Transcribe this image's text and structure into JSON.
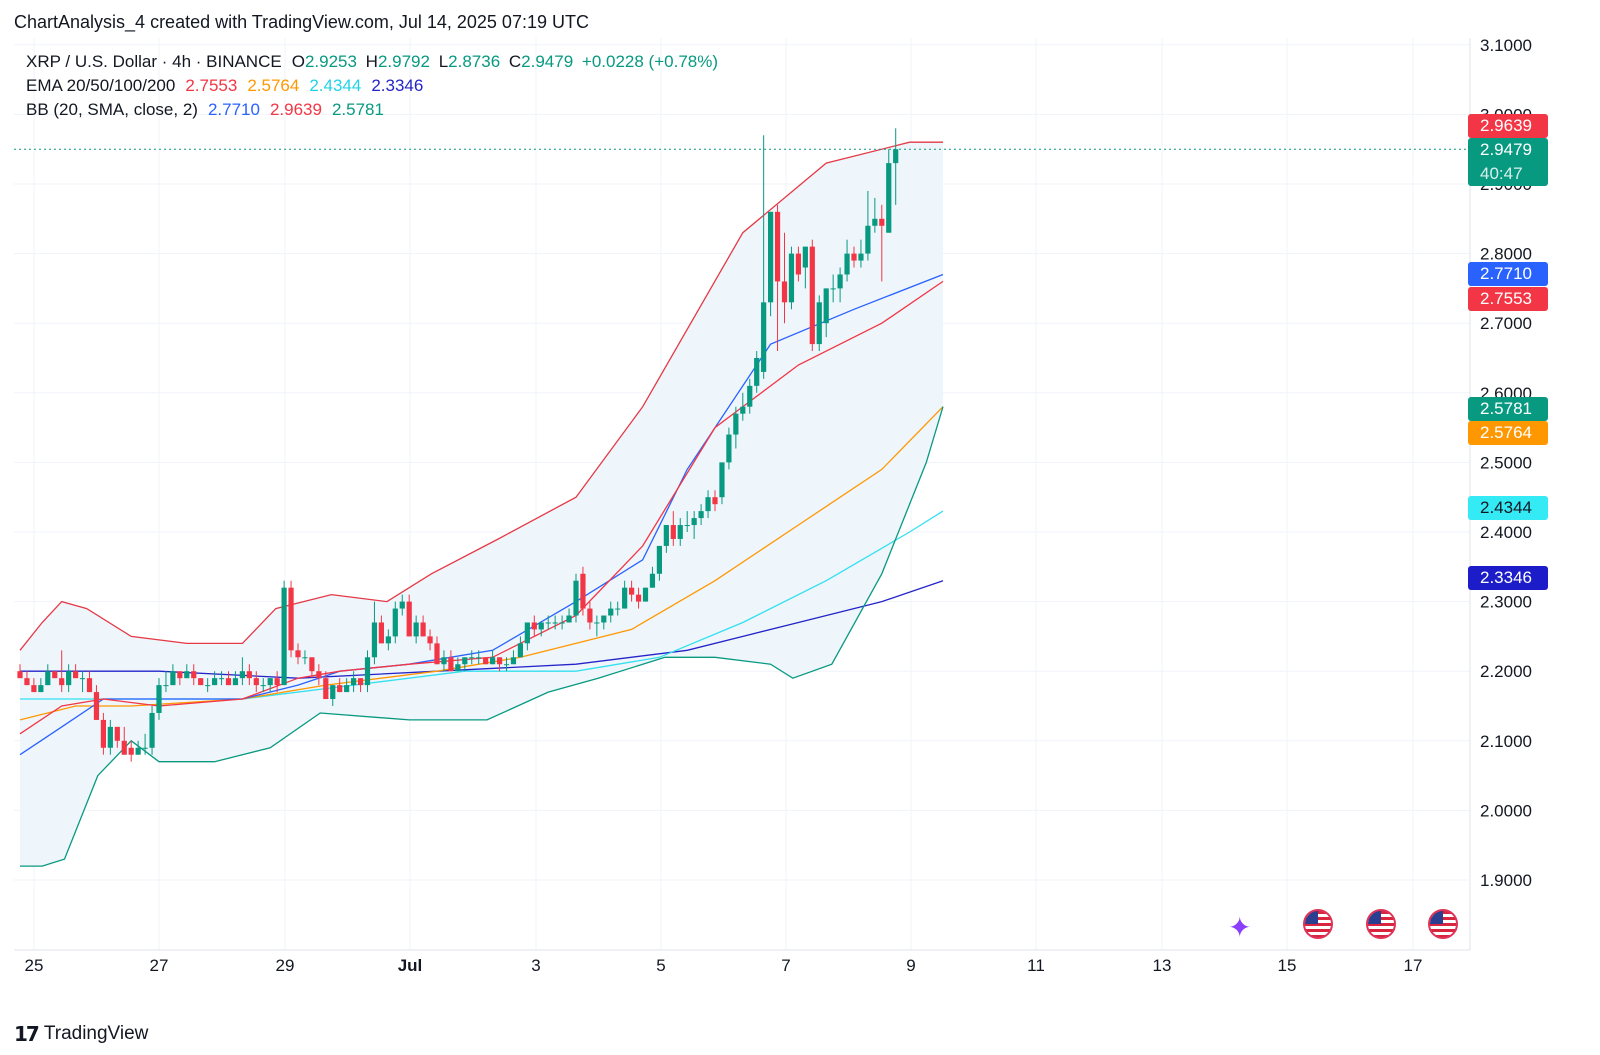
{
  "caption": "ChartAnalysis_4 created with TradingView.com, Jul 14, 2025 07:19 UTC",
  "legend": {
    "symbol": "XRP / U.S. Dollar · 4h · BINANCE",
    "o_label": "O",
    "o_value": "2.9253",
    "h_label": "H",
    "h_value": "2.9792",
    "l_label": "L",
    "l_value": "2.8736",
    "c_label": "C",
    "c_value": "2.9479",
    "change": "+0.0228 (+0.78%)",
    "ema_label": "EMA 20/50/100/200",
    "ema20": "2.7553",
    "ema50": "2.5764",
    "ema100": "2.4344",
    "ema200": "2.3346",
    "bb_label": "BB (20, SMA, close, 2)",
    "bb_basis": "2.7710",
    "bb_upper": "2.9639",
    "bb_lower": "2.5781"
  },
  "price_labels": {
    "bb_upper": "2.9639",
    "last": "2.9479",
    "countdown": "40:47",
    "bb_basis": "2.7710",
    "ema20": "2.7553",
    "bb_lower": "2.5781",
    "ema50": "2.5764",
    "ema100": "2.4344",
    "ema200": "2.3346"
  },
  "footer": {
    "brand": "TradingView",
    "logo": "17"
  },
  "colors": {
    "up": "#089981",
    "down": "#f23645",
    "bb_upper": "#e53945",
    "bb_basis": "#2962ff",
    "bb_lower": "#089981",
    "bb_fill": "#eef5fb",
    "ema20": "#f23645",
    "ema50": "#ff9800",
    "ema100": "#33e0f0",
    "ema200": "#2424c8",
    "last_line": "#089981"
  },
  "icons": {
    "event": "sparkle-icon",
    "flags": [
      "us-flag-icon",
      "us-flag-icon",
      "us-flag-icon"
    ]
  },
  "chart_data": {
    "type": "candlestick",
    "yaxis_ticks": [
      "3.1000",
      "3.0000",
      "2.9000",
      "2.8000",
      "2.7000",
      "2.6000",
      "2.5000",
      "2.4000",
      "2.3000",
      "2.2000",
      "2.1000",
      "2.0000",
      "1.9000"
    ],
    "xaxis_ticks": [
      "25",
      "27",
      "29",
      "Jul",
      "3",
      "5",
      "7",
      "9",
      "11",
      "13",
      "15",
      "17"
    ],
    "ylim": [
      1.8,
      3.15
    ],
    "grid": true,
    "candles_ohlc": [
      [
        2.2,
        2.21,
        2.19,
        2.19
      ],
      [
        2.19,
        2.2,
        2.18,
        2.18
      ],
      [
        2.18,
        2.19,
        2.17,
        2.17
      ],
      [
        2.17,
        2.19,
        2.17,
        2.18
      ],
      [
        2.18,
        2.21,
        2.18,
        2.2
      ],
      [
        2.2,
        2.2,
        2.19,
        2.19
      ],
      [
        2.19,
        2.23,
        2.17,
        2.18
      ],
      [
        2.18,
        2.21,
        2.17,
        2.2
      ],
      [
        2.2,
        2.21,
        2.19,
        2.19
      ],
      [
        2.19,
        2.2,
        2.17,
        2.19
      ],
      [
        2.19,
        2.2,
        2.17,
        2.17
      ],
      [
        2.17,
        2.18,
        2.13,
        2.13
      ],
      [
        2.13,
        2.14,
        2.08,
        2.09
      ],
      [
        2.09,
        2.13,
        2.08,
        2.12
      ],
      [
        2.12,
        2.12,
        2.09,
        2.1
      ],
      [
        2.1,
        2.12,
        2.08,
        2.08
      ],
      [
        2.09,
        2.1,
        2.07,
        2.08
      ],
      [
        2.08,
        2.1,
        2.08,
        2.09
      ],
      [
        2.09,
        2.11,
        2.08,
        2.09
      ],
      [
        2.09,
        2.15,
        2.08,
        2.14
      ],
      [
        2.14,
        2.19,
        2.13,
        2.18
      ],
      [
        2.18,
        2.2,
        2.17,
        2.18
      ],
      [
        2.18,
        2.21,
        2.18,
        2.2
      ],
      [
        2.2,
        2.2,
        2.18,
        2.19
      ],
      [
        2.19,
        2.21,
        2.19,
        2.2
      ],
      [
        2.2,
        2.21,
        2.18,
        2.19
      ],
      [
        2.19,
        2.19,
        2.18,
        2.18
      ],
      [
        2.18,
        2.19,
        2.17,
        2.18
      ],
      [
        2.18,
        2.2,
        2.18,
        2.19
      ],
      [
        2.19,
        2.2,
        2.18,
        2.19
      ],
      [
        2.19,
        2.2,
        2.18,
        2.18
      ],
      [
        2.18,
        2.2,
        2.18,
        2.19
      ],
      [
        2.19,
        2.22,
        2.18,
        2.2
      ],
      [
        2.2,
        2.21,
        2.18,
        2.19
      ],
      [
        2.19,
        2.2,
        2.17,
        2.18
      ],
      [
        2.18,
        2.19,
        2.17,
        2.18
      ],
      [
        2.18,
        2.19,
        2.17,
        2.19
      ],
      [
        2.19,
        2.2,
        2.17,
        2.18
      ],
      [
        2.18,
        2.33,
        2.18,
        2.32
      ],
      [
        2.32,
        2.33,
        2.22,
        2.23
      ],
      [
        2.23,
        2.24,
        2.21,
        2.22
      ],
      [
        2.22,
        2.23,
        2.21,
        2.22
      ],
      [
        2.22,
        2.22,
        2.19,
        2.2
      ],
      [
        2.2,
        2.21,
        2.18,
        2.19
      ],
      [
        2.19,
        2.2,
        2.16,
        2.16
      ],
      [
        2.16,
        2.18,
        2.15,
        2.18
      ],
      [
        2.18,
        2.19,
        2.17,
        2.17
      ],
      [
        2.17,
        2.19,
        2.17,
        2.18
      ],
      [
        2.18,
        2.2,
        2.17,
        2.19
      ],
      [
        2.19,
        2.19,
        2.17,
        2.18
      ],
      [
        2.18,
        2.23,
        2.17,
        2.22
      ],
      [
        2.22,
        2.3,
        2.21,
        2.27
      ],
      [
        2.27,
        2.28,
        2.24,
        2.24
      ],
      [
        2.24,
        2.26,
        2.23,
        2.25
      ],
      [
        2.25,
        2.3,
        2.24,
        2.29
      ],
      [
        2.29,
        2.31,
        2.28,
        2.3
      ],
      [
        2.3,
        2.31,
        2.25,
        2.25
      ],
      [
        2.25,
        2.28,
        2.24,
        2.27
      ],
      [
        2.27,
        2.28,
        2.25,
        2.25
      ],
      [
        2.25,
        2.26,
        2.23,
        2.24
      ],
      [
        2.24,
        2.25,
        2.21,
        2.21
      ],
      [
        2.21,
        2.23,
        2.2,
        2.22
      ],
      [
        2.22,
        2.23,
        2.2,
        2.2
      ],
      [
        2.2,
        2.22,
        2.2,
        2.21
      ],
      [
        2.21,
        2.22,
        2.2,
        2.22
      ],
      [
        2.22,
        2.23,
        2.21,
        2.22
      ],
      [
        2.22,
        2.23,
        2.21,
        2.22
      ],
      [
        2.22,
        2.22,
        2.21,
        2.21
      ],
      [
        2.21,
        2.23,
        2.21,
        2.22
      ],
      [
        2.22,
        2.22,
        2.2,
        2.21
      ],
      [
        2.21,
        2.22,
        2.2,
        2.21
      ],
      [
        2.21,
        2.23,
        2.21,
        2.22
      ],
      [
        2.22,
        2.25,
        2.22,
        2.24
      ],
      [
        2.24,
        2.27,
        2.23,
        2.27
      ],
      [
        2.27,
        2.28,
        2.25,
        2.26
      ],
      [
        2.26,
        2.27,
        2.25,
        2.27
      ],
      [
        2.27,
        2.28,
        2.26,
        2.27
      ],
      [
        2.27,
        2.28,
        2.26,
        2.27
      ],
      [
        2.27,
        2.28,
        2.26,
        2.27
      ],
      [
        2.27,
        2.29,
        2.27,
        2.28
      ],
      [
        2.28,
        2.34,
        2.27,
        2.33
      ],
      [
        2.34,
        2.35,
        2.28,
        2.29
      ],
      [
        2.29,
        2.3,
        2.26,
        2.27
      ],
      [
        2.27,
        2.28,
        2.25,
        2.27
      ],
      [
        2.27,
        2.28,
        2.26,
        2.28
      ],
      [
        2.28,
        2.3,
        2.27,
        2.29
      ],
      [
        2.29,
        2.3,
        2.28,
        2.29
      ],
      [
        2.29,
        2.33,
        2.29,
        2.32
      ],
      [
        2.32,
        2.33,
        2.3,
        2.31
      ],
      [
        2.31,
        2.32,
        2.29,
        2.3
      ],
      [
        2.3,
        2.32,
        2.3,
        2.32
      ],
      [
        2.32,
        2.35,
        2.32,
        2.34
      ],
      [
        2.34,
        2.38,
        2.33,
        2.38
      ],
      [
        2.38,
        2.41,
        2.37,
        2.41
      ],
      [
        2.41,
        2.43,
        2.38,
        2.39
      ],
      [
        2.39,
        2.42,
        2.38,
        2.41
      ],
      [
        2.41,
        2.43,
        2.4,
        2.41
      ],
      [
        2.41,
        2.43,
        2.39,
        2.42
      ],
      [
        2.42,
        2.44,
        2.41,
        2.43
      ],
      [
        2.43,
        2.46,
        2.42,
        2.45
      ],
      [
        2.45,
        2.46,
        2.43,
        2.44
      ],
      [
        2.45,
        2.5,
        2.44,
        2.5
      ],
      [
        2.5,
        2.55,
        2.49,
        2.54
      ],
      [
        2.54,
        2.58,
        2.52,
        2.57
      ],
      [
        2.57,
        2.6,
        2.56,
        2.58
      ],
      [
        2.58,
        2.62,
        2.57,
        2.61
      ],
      [
        2.61,
        2.66,
        2.6,
        2.65
      ],
      [
        2.63,
        2.97,
        2.62,
        2.73
      ],
      [
        2.73,
        2.86,
        2.71,
        2.86
      ],
      [
        2.86,
        2.87,
        2.66,
        2.76
      ],
      [
        2.76,
        2.83,
        2.7,
        2.73
      ],
      [
        2.73,
        2.81,
        2.72,
        2.8
      ],
      [
        2.8,
        2.81,
        2.76,
        2.77
      ],
      [
        2.78,
        2.81,
        2.75,
        2.81
      ],
      [
        2.81,
        2.82,
        2.66,
        2.67
      ],
      [
        2.67,
        2.74,
        2.66,
        2.73
      ],
      [
        2.7,
        2.75,
        2.68,
        2.75
      ],
      [
        2.75,
        2.77,
        2.73,
        2.75
      ],
      [
        2.75,
        2.78,
        2.73,
        2.77
      ],
      [
        2.77,
        2.82,
        2.76,
        2.8
      ],
      [
        2.8,
        2.81,
        2.78,
        2.79
      ],
      [
        2.79,
        2.82,
        2.78,
        2.8
      ],
      [
        2.8,
        2.89,
        2.79,
        2.84
      ],
      [
        2.84,
        2.88,
        2.83,
        2.85
      ],
      [
        2.85,
        2.87,
        2.76,
        2.84
      ],
      [
        2.83,
        2.95,
        2.83,
        2.93
      ],
      [
        2.93,
        2.98,
        2.87,
        2.95
      ]
    ],
    "bb_upper": [
      [
        0,
        2.23
      ],
      [
        8,
        2.27
      ],
      [
        15,
        2.3
      ],
      [
        24,
        2.29
      ],
      [
        40,
        2.25
      ],
      [
        60,
        2.24
      ],
      [
        80,
        2.24
      ],
      [
        92,
        2.29
      ],
      [
        112,
        2.31
      ],
      [
        132,
        2.3
      ],
      [
        148,
        2.34
      ],
      [
        172,
        2.39
      ],
      [
        200,
        2.45
      ],
      [
        224,
        2.58
      ],
      [
        260,
        2.83
      ],
      [
        290,
        2.93
      ],
      [
        320,
        2.96
      ],
      [
        332,
        2.96
      ]
    ],
    "bb_basis": [
      [
        0,
        2.08
      ],
      [
        15,
        2.12
      ],
      [
        30,
        2.16
      ],
      [
        50,
        2.16
      ],
      [
        80,
        2.16
      ],
      [
        100,
        2.18
      ],
      [
        115,
        2.2
      ],
      [
        140,
        2.21
      ],
      [
        170,
        2.23
      ],
      [
        200,
        2.3
      ],
      [
        224,
        2.36
      ],
      [
        240,
        2.49
      ],
      [
        270,
        2.67
      ],
      [
        300,
        2.72
      ],
      [
        332,
        2.77
      ]
    ],
    "bb_lower": [
      [
        0,
        1.92
      ],
      [
        8,
        1.92
      ],
      [
        16,
        1.93
      ],
      [
        28,
        2.05
      ],
      [
        40,
        2.1
      ],
      [
        50,
        2.07
      ],
      [
        70,
        2.07
      ],
      [
        90,
        2.09
      ],
      [
        108,
        2.14
      ],
      [
        140,
        2.13
      ],
      [
        168,
        2.13
      ],
      [
        190,
        2.17
      ],
      [
        208,
        2.19
      ],
      [
        232,
        2.22
      ],
      [
        250,
        2.22
      ],
      [
        270,
        2.21
      ],
      [
        278,
        2.19
      ],
      [
        292,
        2.21
      ],
      [
        310,
        2.34
      ],
      [
        326,
        2.5
      ],
      [
        332,
        2.58
      ]
    ],
    "ema20": [
      [
        0,
        2.11
      ],
      [
        15,
        2.15
      ],
      [
        30,
        2.16
      ],
      [
        50,
        2.15
      ],
      [
        80,
        2.16
      ],
      [
        100,
        2.19
      ],
      [
        115,
        2.2
      ],
      [
        140,
        2.21
      ],
      [
        170,
        2.22
      ],
      [
        200,
        2.28
      ],
      [
        224,
        2.38
      ],
      [
        250,
        2.55
      ],
      [
        280,
        2.64
      ],
      [
        310,
        2.7
      ],
      [
        332,
        2.76
      ]
    ],
    "ema50": [
      [
        0,
        2.13
      ],
      [
        20,
        2.15
      ],
      [
        40,
        2.15
      ],
      [
        80,
        2.16
      ],
      [
        110,
        2.18
      ],
      [
        150,
        2.2
      ],
      [
        180,
        2.22
      ],
      [
        220,
        2.26
      ],
      [
        250,
        2.33
      ],
      [
        280,
        2.41
      ],
      [
        310,
        2.49
      ],
      [
        332,
        2.58
      ]
    ],
    "ema100": [
      [
        0,
        2.16
      ],
      [
        40,
        2.16
      ],
      [
        80,
        2.16
      ],
      [
        120,
        2.18
      ],
      [
        160,
        2.2
      ],
      [
        200,
        2.2
      ],
      [
        230,
        2.22
      ],
      [
        260,
        2.27
      ],
      [
        290,
        2.33
      ],
      [
        320,
        2.4
      ],
      [
        332,
        2.43
      ]
    ],
    "ema200": [
      [
        0,
        2.2
      ],
      [
        50,
        2.2
      ],
      [
        100,
        2.19
      ],
      [
        150,
        2.2
      ],
      [
        200,
        2.21
      ],
      [
        240,
        2.23
      ],
      [
        280,
        2.27
      ],
      [
        310,
        2.3
      ],
      [
        332,
        2.33
      ]
    ]
  }
}
